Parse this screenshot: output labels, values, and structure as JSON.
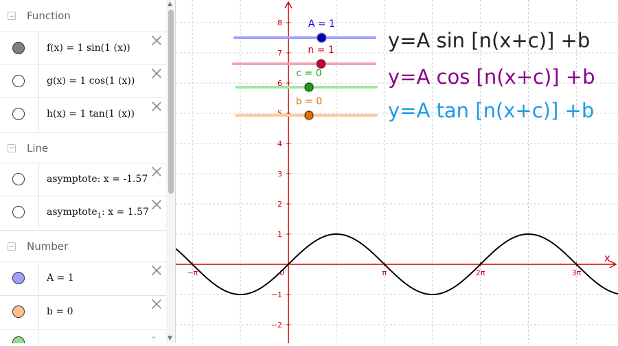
{
  "algebra": {
    "groups": [
      {
        "label": "Function",
        "items": [
          {
            "text": "f(x) = 1 sin(1 (x))",
            "color": "#808080",
            "visible": true
          },
          {
            "text": "g(x) = 1 cos(1 (x))",
            "color": "#ffffff",
            "visible": false
          },
          {
            "text": "h(x) = 1 tan(1 (x))",
            "color": "#ffffff",
            "visible": false
          }
        ]
      },
      {
        "label": "Line",
        "items": [
          {
            "text": "asymptote: x = -1.57",
            "color": "#ffffff",
            "visible": false
          },
          {
            "name": "asymptote",
            "sub": "1",
            "rest": ": x = 1.57",
            "color": "#ffffff",
            "visible": false
          }
        ]
      },
      {
        "label": "Number",
        "items": [
          {
            "text": "A = 1",
            "color": "#a0a0ff",
            "visible": true
          },
          {
            "text": "b = 0",
            "color": "#ffbf90",
            "visible": true
          }
        ]
      }
    ],
    "partial_item_color": "#90e090"
  },
  "graph": {
    "x_axis_label": "x",
    "x_ticks": [
      {
        "label": "−π",
        "value": -3.14159
      },
      {
        "label": "π",
        "value": 3.14159
      },
      {
        "label": "2π",
        "value": 6.28319
      },
      {
        "label": "3π",
        "value": 9.42478
      }
    ],
    "origin_label": "0",
    "y_ticks": [
      -2,
      -1,
      1,
      2,
      3,
      4,
      5,
      6,
      7,
      8
    ],
    "axis_color": "#cc0000",
    "curve_color": "#000000",
    "equations": [
      {
        "text": "y=A sin [n(x+c)] +b",
        "color": "#222222"
      },
      {
        "text": "y=A cos [n(x+c)] +b",
        "color": "#8b008b"
      },
      {
        "text": "y=A tan [n(x+c)] +b",
        "color": "#1e9be6"
      }
    ],
    "sliders": [
      {
        "label": "A = 1",
        "value": 1,
        "min": -5,
        "max": 5,
        "line_color": "#a0a0ff",
        "knob_color": "#0000cc",
        "label_color": "#0000cc"
      },
      {
        "label": "n = 1",
        "value": 1,
        "min": -5,
        "max": 5,
        "line_color": "#f4a0b4",
        "knob_color": "#d0002c",
        "label_color": "#d0002c"
      },
      {
        "label": "c = 0",
        "value": 0,
        "min": -5,
        "max": 5,
        "line_color": "#a0e8a0",
        "knob_color": "#1a9e1a",
        "label_color": "#1a9e1a"
      },
      {
        "label": "b = 0",
        "value": 0,
        "min": -5,
        "max": 5,
        "line_color": "#ffcc99",
        "knob_color": "#e07000",
        "label_color": "#e07000"
      }
    ]
  }
}
